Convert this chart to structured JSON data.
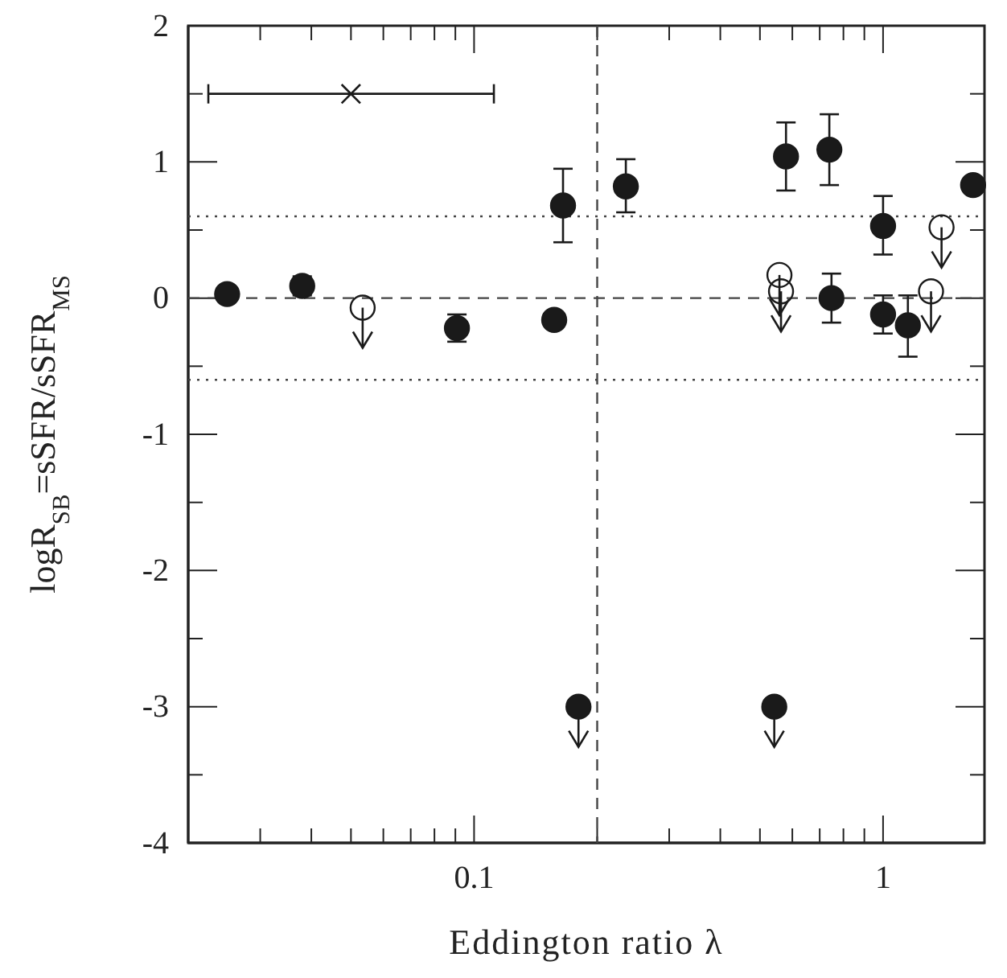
{
  "chart_data": {
    "type": "scatter",
    "xlabel": "Eddington ratio λ",
    "ylabel": "logR$_{SB}$=sSFR/sSFR$_{MS}$",
    "log": "x",
    "xlim": [
      0.02,
      1.77
    ],
    "ylim": [
      -4,
      2
    ],
    "xticks": [
      {
        "value": 0.02,
        "label": null
      },
      {
        "value": 0.03,
        "label": null
      },
      {
        "value": 0.04,
        "label": null
      },
      {
        "value": 0.05,
        "label": null
      },
      {
        "value": 0.06,
        "label": null
      },
      {
        "value": 0.07,
        "label": null
      },
      {
        "value": 0.08,
        "label": null
      },
      {
        "value": 0.09,
        "label": null
      },
      0.1,
      {
        "value": 0.2,
        "label": null
      },
      {
        "value": 0.3,
        "label": null
      },
      {
        "value": 0.4,
        "label": null
      },
      {
        "value": 0.5,
        "label": null
      },
      {
        "value": 0.6,
        "label": null
      },
      {
        "value": 0.7,
        "label": null
      },
      {
        "value": 0.8,
        "label": null
      },
      {
        "value": 0.9,
        "label": null
      },
      1
    ],
    "yticks": [
      -4,
      {
        "value": -3.5,
        "label": null
      },
      -3,
      {
        "value": -2.5,
        "label": null
      },
      -2,
      {
        "value": -1.5,
        "label": null
      },
      -1,
      {
        "value": -0.5,
        "label": null
      },
      0,
      {
        "value": 0.5,
        "label": null
      },
      1,
      {
        "value": 1.5,
        "label": null
      },
      2
    ],
    "grid": false,
    "ref_lines": [
      {
        "axis": "y",
        "value": 0,
        "line_style": "dashed"
      },
      {
        "axis": "y",
        "value": 0.6,
        "line_style": "dotted"
      },
      {
        "axis": "y",
        "value": -0.6,
        "line_style": "dotted"
      },
      {
        "axis": "x",
        "value": 0.2,
        "line_style": "dashed"
      }
    ],
    "series": [
      {
        "color": "#1a1a1a",
        "marker": "circle",
        "x": [
          0.0249,
          0.038,
          0.0908,
          0.157,
          0.165,
          0.235,
          0.579,
          0.739,
          1.0,
          1.66,
          0.748,
          1.0,
          1.15
        ],
        "values": [
          0.03,
          0.09,
          -0.22,
          -0.16,
          0.68,
          0.82,
          1.04,
          1.09,
          0.53,
          0.83,
          0,
          -0.12,
          -0.2
        ],
        "errors": [
          null,
          0.07,
          0.1,
          null,
          0.27,
          [
            0.63,
            1.02
          ],
          [
            0.79,
            1.29
          ],
          [
            0.83,
            1.35
          ],
          [
            0.32,
            0.75
          ],
          null,
          0.18,
          [
            -0.26,
            0.02
          ],
          [
            -0.43,
            0.02
          ]
        ]
      },
      {
        "color": "#1a1a1a",
        "marker": "circle",
        "x": [
          0.18,
          0.542
        ],
        "values": [
          -3,
          -3
        ]
      },
      {
        "color": "#1a1a1a",
        "marker": "circle",
        "x": [
          0.0534,
          0.558,
          0.563,
          1.39,
          1.31
        ],
        "values": [
          -0.07,
          0.17,
          0.05,
          0.52,
          0.05
        ]
      },
      {
        "color": "#1a1a1a",
        "marker": "cross",
        "x": [
          0.05
        ],
        "values": [
          1.5
        ],
        "xerrors": [
          [
            0.0224,
            0.1118
          ]
        ]
      }
    ]
  }
}
